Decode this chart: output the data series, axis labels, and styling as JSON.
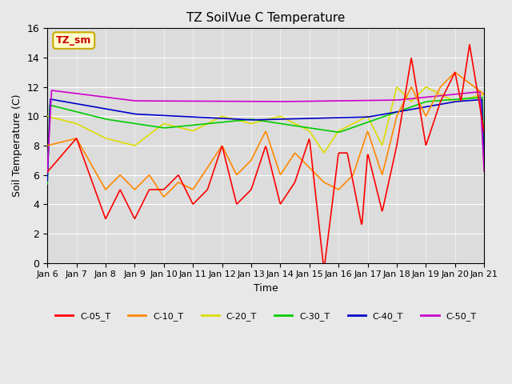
{
  "title": "TZ SoilVue C Temperature",
  "xlabel": "Time",
  "ylabel": "Soil Temperature (C)",
  "ylim": [
    0,
    16
  ],
  "yticks": [
    0,
    2,
    4,
    6,
    8,
    10,
    12,
    14,
    16
  ],
  "background_color": "#e8e8e8",
  "plot_bg_color": "#dcdcdc",
  "annotation_text": "TZ_sm",
  "annotation_bg": "#ffffcc",
  "annotation_border": "#ccaa00",
  "annotation_text_color": "#cc0000",
  "legend_labels": [
    "C-05_T",
    "C-10_T",
    "C-20_T",
    "C-30_T",
    "C-40_T",
    "C-50_T"
  ],
  "line_colors": [
    "#ff0000",
    "#ff8800",
    "#dddd00",
    "#00cc00",
    "#0000cc",
    "#cc00cc"
  ],
  "x_tick_labels": [
    "Jan 6",
    "Jan 7",
    "Jan 8",
    "Jan 9",
    "Jan 10",
    "Jan 11",
    "Jan 12",
    "Jan 13",
    "Jan 14",
    "Jan 15",
    "Jan 16",
    "Jan 17",
    "Jan 18",
    "Jan 19",
    "Jan 20",
    "Jan 21"
  ],
  "n_days": 15,
  "pts_per_day": 48
}
